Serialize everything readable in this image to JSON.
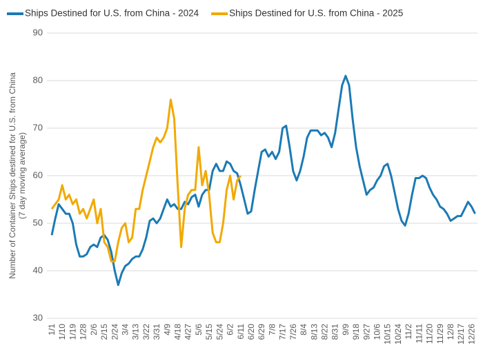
{
  "chart_data": {
    "type": "line",
    "y_label": [
      "Number of Container Ships destined for U.S. from China",
      "(7 day moving average)"
    ],
    "categories": [
      "1/1",
      null,
      null,
      "1/10",
      null,
      null,
      "1/19",
      null,
      null,
      "1/28",
      null,
      null,
      "2/6",
      null,
      null,
      "2/15",
      null,
      null,
      "2/24",
      null,
      null,
      "3/4",
      null,
      null,
      "3/13",
      null,
      null,
      "3/22",
      null,
      null,
      "3/31",
      null,
      null,
      "4/9",
      null,
      null,
      "4/18",
      null,
      null,
      "4/27",
      null,
      null,
      "5/6",
      null,
      null,
      "5/15",
      null,
      null,
      "5/24",
      null,
      null,
      "6/2",
      null,
      null,
      "6/11",
      null,
      null,
      "6/20",
      null,
      null,
      "6/29",
      null,
      null,
      "7/8",
      null,
      null,
      "7/17",
      null,
      null,
      "7/26",
      null,
      null,
      "8/4",
      null,
      null,
      "8/13",
      null,
      null,
      "8/22",
      null,
      null,
      "8/31",
      null,
      null,
      "9/9",
      null,
      null,
      "9/18",
      null,
      null,
      "9/27",
      null,
      null,
      "10/6",
      null,
      null,
      "10/15",
      null,
      null,
      "10/24",
      null,
      null,
      "11/2",
      null,
      null,
      "11/11",
      null,
      null,
      "11/20",
      null,
      null,
      "11/29",
      null,
      null,
      "12/8",
      null,
      null,
      "12/17",
      null,
      null,
      "12/26",
      null
    ],
    "series": [
      {
        "name": "Ships Destined for U.S. from China - 2024",
        "color": "#1b7ab5",
        "values": [
          47.5,
          51,
          54,
          53,
          52,
          52,
          50,
          45.5,
          43,
          43,
          43.5,
          45,
          45.5,
          45,
          47,
          47.5,
          46.5,
          44,
          40,
          37,
          39.5,
          41,
          41.5,
          42.5,
          43,
          43,
          44.5,
          47,
          50.5,
          51,
          50,
          51,
          53,
          55,
          53.5,
          54,
          53,
          53,
          54.5,
          54,
          55.5,
          56,
          53.5,
          56,
          57,
          57,
          61,
          62.5,
          61,
          61,
          63,
          62.5,
          61,
          60.5,
          58,
          55,
          52,
          52.5,
          57,
          61,
          65,
          65.5,
          64,
          65,
          63.5,
          65,
          70,
          70.5,
          66,
          61,
          59,
          61,
          64,
          68,
          69.5,
          69.5,
          69.5,
          68.5,
          69,
          68,
          66,
          69,
          74,
          79,
          81,
          79,
          72,
          66,
          62,
          59,
          56,
          57,
          57.5,
          59,
          60,
          62,
          62.5,
          60,
          56.5,
          53,
          50.5,
          49.5,
          52,
          56,
          59.5,
          59.5,
          60,
          59.5,
          57.5,
          56,
          55,
          53.5,
          53,
          52,
          50.5,
          51,
          51.5,
          51.5,
          53,
          54.5,
          53.5,
          52
        ]
      },
      {
        "name": "Ships Destined for U.S. from China - 2025",
        "color": "#f2a900",
        "values": [
          53,
          54,
          55,
          58,
          55,
          56,
          54,
          55,
          52,
          53,
          51,
          53,
          55,
          50,
          53,
          46,
          45,
          42,
          42,
          46,
          49,
          50,
          46,
          47,
          53,
          53,
          57,
          60,
          63,
          66,
          68,
          67,
          68,
          70,
          76,
          72,
          58,
          45,
          53,
          56,
          57,
          57,
          66,
          58,
          61,
          56,
          48,
          46,
          46,
          50,
          57,
          60,
          55,
          59,
          60,
          null,
          null,
          null,
          null,
          null,
          null,
          null,
          null,
          null,
          null,
          null,
          null,
          null,
          null,
          null,
          null,
          null,
          null,
          null,
          null,
          null,
          null,
          null,
          null,
          null,
          null,
          null,
          null,
          null,
          null,
          null,
          null,
          null,
          null,
          null,
          null,
          null,
          null,
          null,
          null,
          null,
          null,
          null,
          null,
          null,
          null,
          null,
          null,
          null,
          null,
          null,
          null,
          null,
          null,
          null,
          null,
          null,
          null,
          null,
          null,
          null,
          null,
          null,
          null,
          null,
          null,
          null
        ]
      }
    ],
    "ylim": [
      30,
      90
    ],
    "yticks": [
      30,
      40,
      50,
      60,
      70,
      80,
      90
    ],
    "grid": true
  }
}
